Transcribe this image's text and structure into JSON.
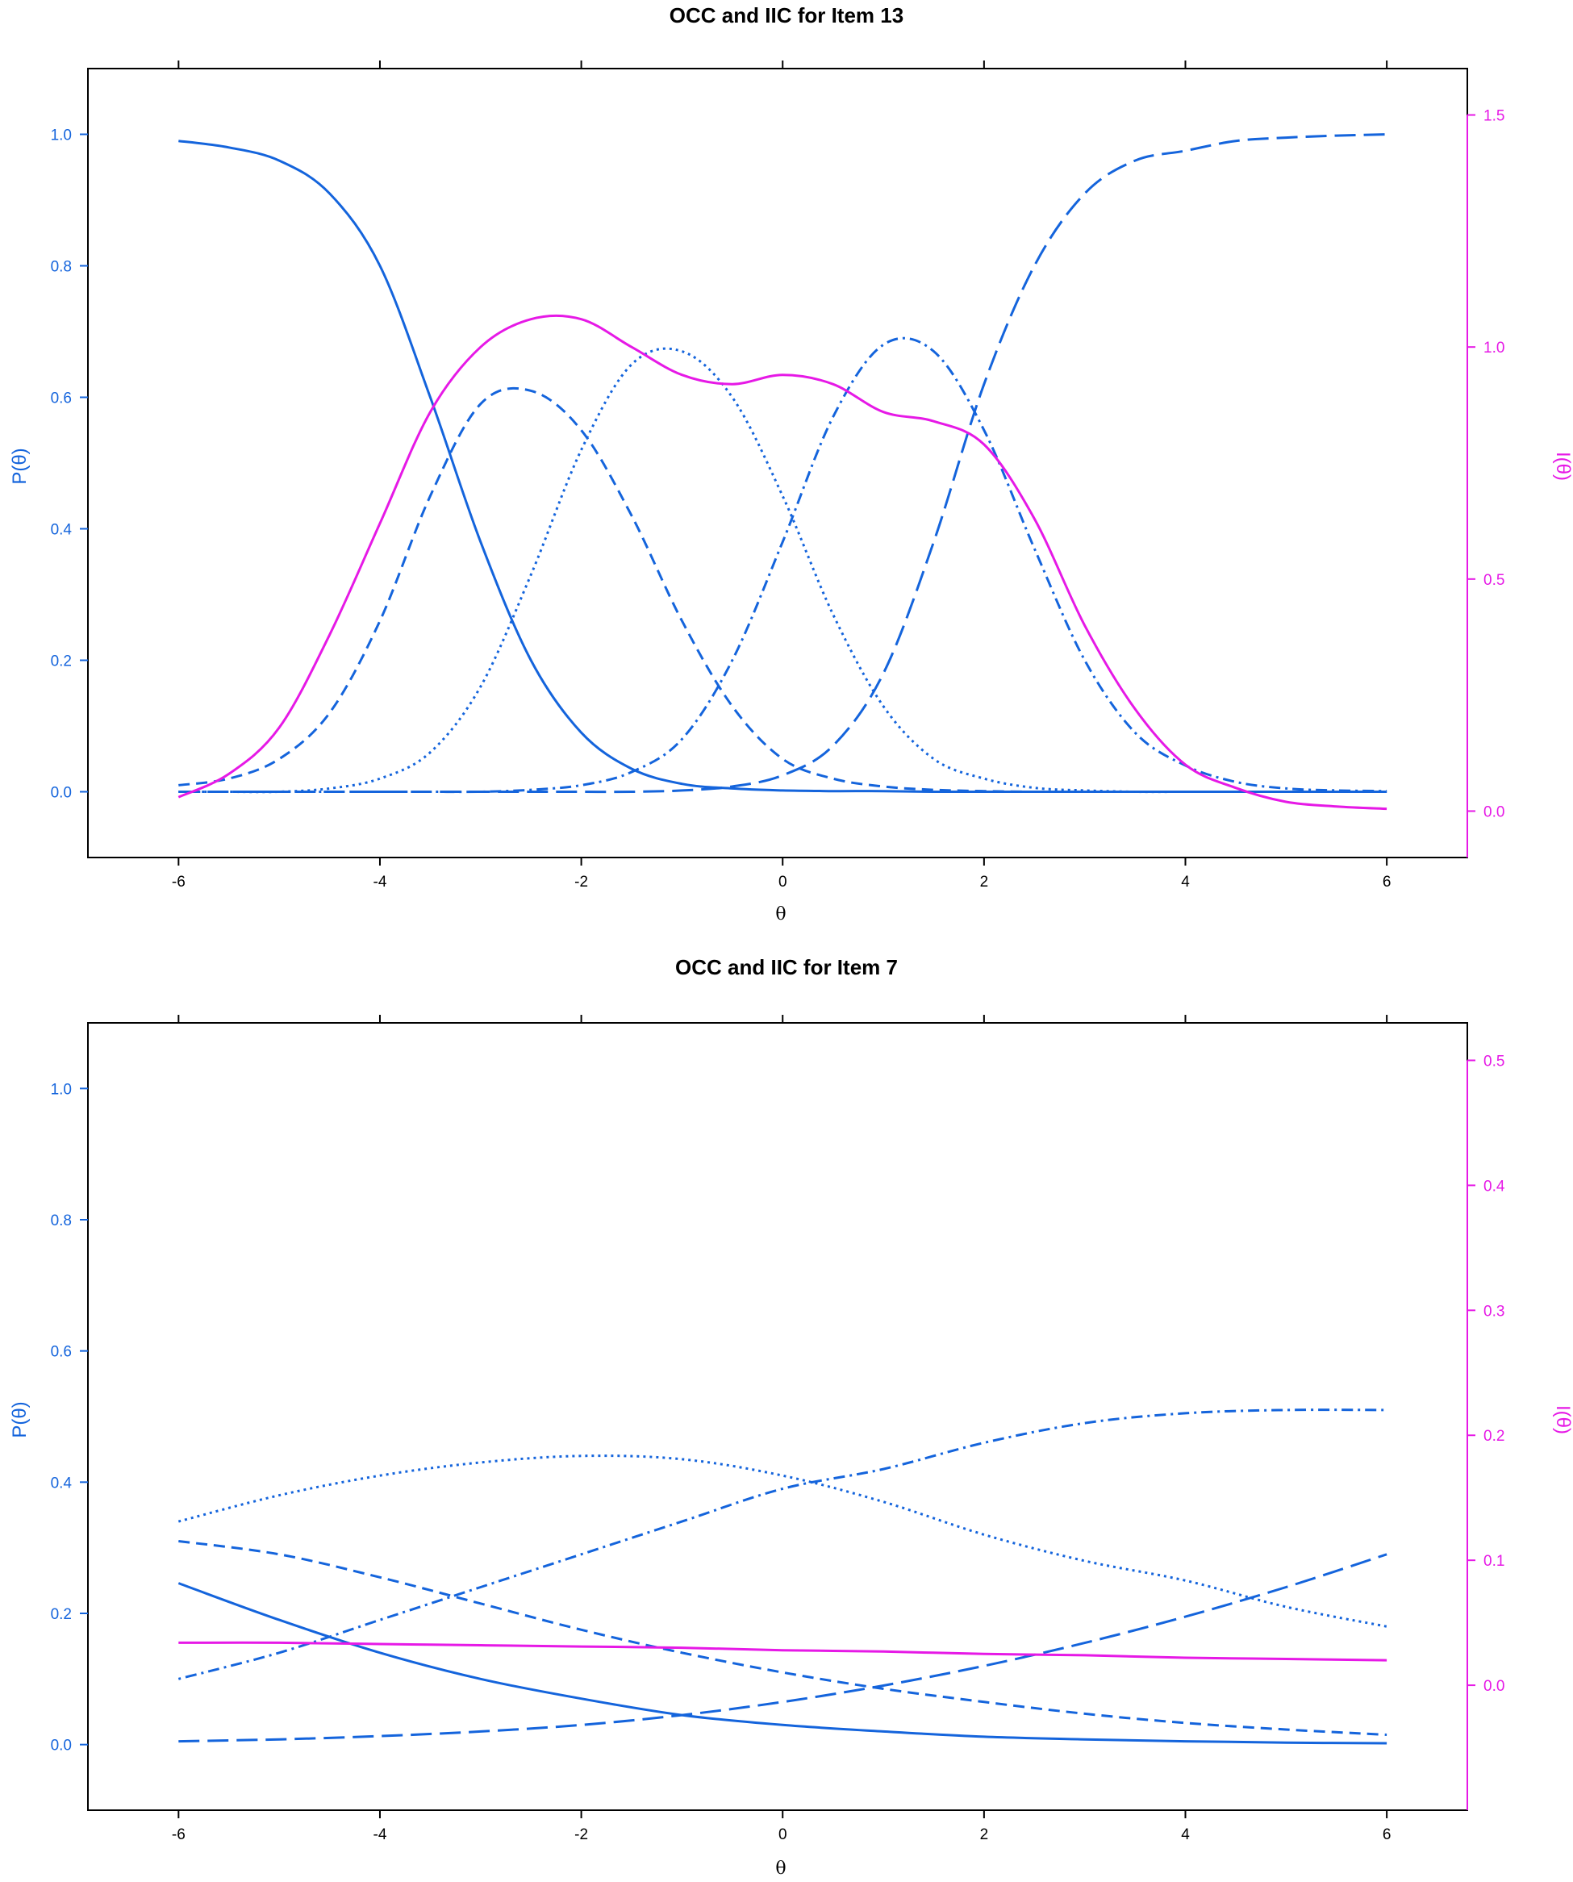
{
  "colors": {
    "blue": "#1464dc",
    "magenta": "#e619e6",
    "frame": "#000000"
  },
  "chart_data": [
    {
      "type": "line",
      "title": "OCC and IIC for Item 13",
      "xlabel": "θ",
      "ylabel_left": "P(θ)",
      "ylabel_right": "I(θ)",
      "xlim": [
        -6.9,
        6.8
      ],
      "ylim_left": [
        -0.1,
        1.1
      ],
      "ylim_right": [
        -0.1,
        1.6
      ],
      "x_ticks": [
        -6,
        -4,
        -2,
        0,
        2,
        4,
        6
      ],
      "x_tick_labels": [
        "-6",
        "-4",
        "-2",
        "0",
        "2",
        "4",
        "6"
      ],
      "y_left_ticks": [
        0.0,
        0.2,
        0.4,
        0.6,
        0.8,
        1.0
      ],
      "y_left_tick_labels": [
        "0.0",
        "0.2",
        "0.4",
        "0.6",
        "0.8",
        "1.0"
      ],
      "y_right_ticks": [
        0.0,
        0.5,
        1.0,
        1.5
      ],
      "y_right_tick_labels": [
        "0.0",
        "0.5",
        "1.0",
        "1.5"
      ],
      "x": [
        -6,
        -5.5,
        -5,
        -4.5,
        -4,
        -3.5,
        -3,
        -2.5,
        -2,
        -1.5,
        -1,
        -0.5,
        0,
        0.5,
        1,
        1.5,
        2,
        2.5,
        3,
        3.5,
        4,
        4.5,
        5,
        5.5,
        6
      ],
      "series": [
        {
          "axis": "left",
          "dash": "solid",
          "values": [
            0.99,
            0.98,
            0.96,
            0.91,
            0.8,
            0.6,
            0.38,
            0.2,
            0.09,
            0.035,
            0.012,
            0.005,
            0.002,
            0.001,
            0.001,
            0.0,
            0.0,
            0.0,
            0.0,
            0.0,
            0.0,
            0.0,
            0.0,
            0.0,
            0.0
          ]
        },
        {
          "axis": "left",
          "dash": "dashed",
          "values": [
            0.01,
            0.02,
            0.05,
            0.12,
            0.26,
            0.45,
            0.59,
            0.61,
            0.55,
            0.42,
            0.26,
            0.13,
            0.05,
            0.02,
            0.008,
            0.003,
            0.001,
            0.0,
            0.0,
            0.0,
            0.0,
            0.0,
            0.0,
            0.0,
            0.0
          ]
        },
        {
          "axis": "left",
          "dash": "dotted",
          "values": [
            0.0,
            0.0,
            0.0,
            0.005,
            0.02,
            0.06,
            0.16,
            0.33,
            0.52,
            0.65,
            0.67,
            0.6,
            0.45,
            0.27,
            0.13,
            0.05,
            0.02,
            0.006,
            0.002,
            0.0,
            0.0,
            0.0,
            0.0,
            0.0,
            0.0
          ]
        },
        {
          "axis": "left",
          "dash": "dotdash",
          "values": [
            0.0,
            0.0,
            0.0,
            0.0,
            0.0,
            0.0,
            0.0,
            0.003,
            0.01,
            0.03,
            0.08,
            0.2,
            0.38,
            0.57,
            0.68,
            0.67,
            0.55,
            0.37,
            0.2,
            0.09,
            0.04,
            0.015,
            0.005,
            0.002,
            0.001
          ]
        },
        {
          "axis": "left",
          "dash": "longdash",
          "values": [
            0.0,
            0.0,
            0.0,
            0.0,
            0.0,
            0.0,
            0.0,
            0.0,
            0.0,
            0.0,
            0.002,
            0.008,
            0.025,
            0.07,
            0.18,
            0.38,
            0.62,
            0.8,
            0.91,
            0.96,
            0.975,
            0.99,
            0.995,
            0.998,
            1.0
          ]
        },
        {
          "axis": "right",
          "dash": "solid",
          "color": "magenta",
          "values": [
            0.03,
            0.08,
            0.18,
            0.38,
            0.62,
            0.86,
            1.0,
            1.06,
            1.06,
            1.0,
            0.94,
            0.92,
            0.94,
            0.92,
            0.86,
            0.84,
            0.79,
            0.63,
            0.4,
            0.22,
            0.1,
            0.05,
            0.02,
            0.01,
            0.005
          ]
        }
      ]
    },
    {
      "type": "line",
      "title": "OCC and IIC for Item 7",
      "xlabel": "θ",
      "ylabel_left": "P(θ)",
      "ylabel_right": "I(θ)",
      "xlim": [
        -6.9,
        6.8
      ],
      "ylim_left": [
        -0.1,
        1.1
      ],
      "ylim_right": [
        -0.1,
        0.53
      ],
      "x_ticks": [
        -6,
        -4,
        -2,
        0,
        2,
        4,
        6
      ],
      "x_tick_labels": [
        "-6",
        "-4",
        "-2",
        "0",
        "2",
        "4",
        "6"
      ],
      "y_left_ticks": [
        0.0,
        0.2,
        0.4,
        0.6,
        0.8,
        1.0
      ],
      "y_left_tick_labels": [
        "0.0",
        "0.2",
        "0.4",
        "0.6",
        "0.8",
        "1.0"
      ],
      "y_right_ticks": [
        0.0,
        0.1,
        0.2,
        0.3,
        0.4,
        0.5
      ],
      "y_right_tick_labels": [
        "0.0",
        "0.1",
        "0.2",
        "0.3",
        "0.4",
        "0.5"
      ],
      "x": [
        -6,
        -5,
        -4,
        -3,
        -2,
        -1,
        0,
        1,
        2,
        3,
        4,
        5,
        6
      ],
      "series": [
        {
          "axis": "left",
          "dash": "solid",
          "values": [
            0.246,
            0.19,
            0.14,
            0.1,
            0.07,
            0.045,
            0.03,
            0.02,
            0.012,
            0.008,
            0.005,
            0.003,
            0.002
          ]
        },
        {
          "axis": "left",
          "dash": "dashed",
          "values": [
            0.31,
            0.29,
            0.255,
            0.215,
            0.175,
            0.14,
            0.11,
            0.085,
            0.065,
            0.047,
            0.033,
            0.023,
            0.015
          ]
        },
        {
          "axis": "left",
          "dash": "dotted",
          "values": [
            0.34,
            0.38,
            0.41,
            0.43,
            0.44,
            0.435,
            0.41,
            0.37,
            0.32,
            0.28,
            0.25,
            0.21,
            0.18
          ]
        },
        {
          "axis": "left",
          "dash": "dotdash",
          "values": [
            0.1,
            0.14,
            0.19,
            0.24,
            0.29,
            0.34,
            0.39,
            0.42,
            0.46,
            0.49,
            0.505,
            0.51,
            0.51
          ]
        },
        {
          "axis": "left",
          "dash": "longdash",
          "values": [
            0.005,
            0.008,
            0.013,
            0.02,
            0.03,
            0.045,
            0.065,
            0.09,
            0.12,
            0.155,
            0.195,
            0.24,
            0.29
          ]
        },
        {
          "axis": "right",
          "dash": "solid",
          "color": "magenta",
          "values": [
            0.034,
            0.034,
            0.033,
            0.032,
            0.031,
            0.03,
            0.028,
            0.027,
            0.025,
            0.024,
            0.022,
            0.021,
            0.02
          ]
        }
      ]
    }
  ]
}
